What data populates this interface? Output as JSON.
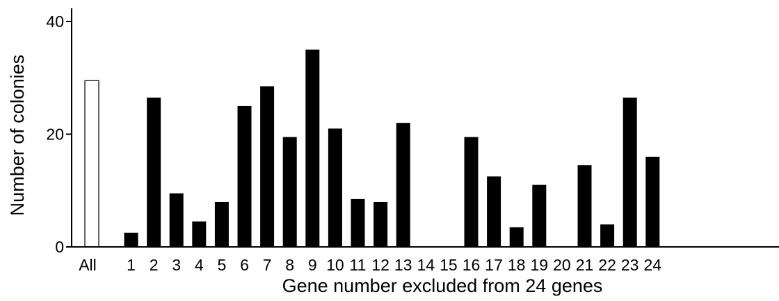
{
  "chart_data": {
    "type": "bar",
    "title": "",
    "xlabel": "Gene number excluded from 24 genes",
    "ylabel": "Number of colonies",
    "ylim": [
      0,
      40
    ],
    "yticks": [
      0,
      20,
      40
    ],
    "grid": false,
    "categories": [
      "All",
      "1",
      "2",
      "3",
      "4",
      "5",
      "6",
      "7",
      "8",
      "9",
      "10",
      "11",
      "12",
      "13",
      "14",
      "15",
      "16",
      "17",
      "18",
      "19",
      "20",
      "21",
      "22",
      "23",
      "24"
    ],
    "values": [
      29.5,
      2.5,
      26.5,
      9.5,
      4.5,
      8,
      25,
      28.5,
      19.5,
      35,
      21,
      8.5,
      8,
      22,
      0,
      0,
      19.5,
      12.5,
      3.5,
      11,
      0,
      14.5,
      4,
      26.5,
      16
    ],
    "colors": {
      "first_bar_fill": "#ffffff",
      "bar_fill": "#000000",
      "axis": "#000000"
    }
  }
}
